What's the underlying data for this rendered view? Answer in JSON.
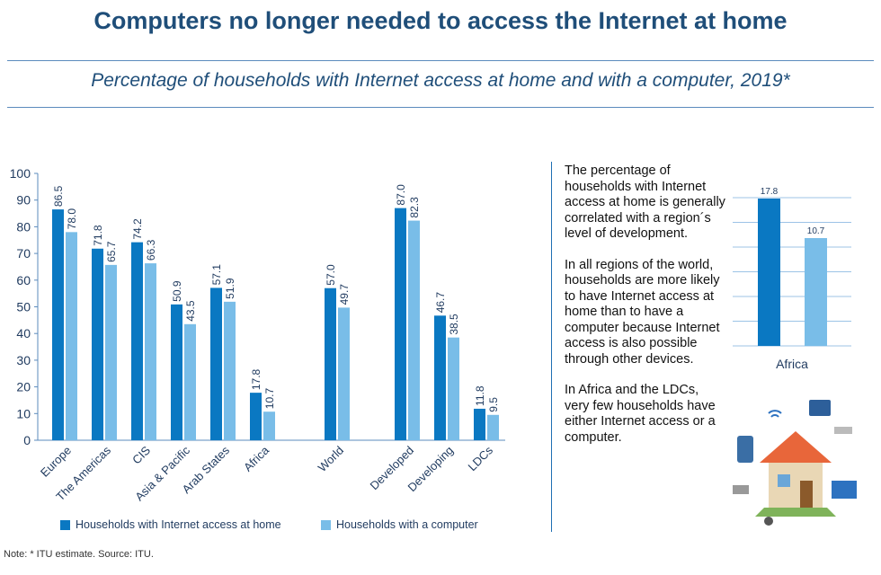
{
  "title": "Computers no longer needed to access the Internet at home",
  "subtitle": "Percentage of households with Internet access at home and with a computer, 2019*",
  "chart_data": {
    "type": "bar",
    "title": "Percentage of households with Internet access at home and with a computer, 2019*",
    "categories": [
      "Europe",
      "The Americas",
      "CIS",
      "Asia & Pacific",
      "Arab States",
      "Africa",
      "World",
      "Developed",
      "Developing",
      "LDCs"
    ],
    "series": [
      {
        "name": "Households with Internet access at home",
        "color": "#0a78c2",
        "values": [
          86.5,
          71.8,
          74.2,
          50.9,
          57.1,
          17.8,
          57.0,
          87.0,
          46.7,
          11.8
        ]
      },
      {
        "name": "Households with a computer",
        "color": "#79bde8",
        "values": [
          78.0,
          65.7,
          66.3,
          43.5,
          51.9,
          10.7,
          49.7,
          82.3,
          38.5,
          9.5
        ]
      }
    ],
    "value_labels": [
      [
        "86.5",
        "71.8",
        "74.2",
        "50.9",
        "57.1",
        "17.8",
        "57.0",
        "87.0",
        "46.7",
        "11.8"
      ],
      [
        "78.0",
        "65.7",
        "66.3",
        "43.5",
        "51.9",
        "10.7",
        "49.7",
        "82.3",
        "38.5",
        "9.5"
      ]
    ],
    "yticks": [
      "0",
      "10",
      "20",
      "30",
      "40",
      "50",
      "60",
      "70",
      "80",
      "90",
      "100"
    ],
    "ylim": [
      0,
      100
    ],
    "legend": "bottom",
    "inset": {
      "category": "Africa",
      "values": [
        17.8,
        10.7
      ],
      "labels": [
        "17.8",
        "10.7"
      ]
    }
  },
  "side_text": [
    "The percentage of households with Internet access at home is generally correlated with a region´s level of development.",
    "In all regions of the world, households are more likely to have Internet access at home than to have a computer because Internet access is also possible through other devices.",
    "In Africa and the LDCs, very few households have either Internet access or a computer."
  ],
  "note": "Note: * ITU estimate.    Source: ITU."
}
